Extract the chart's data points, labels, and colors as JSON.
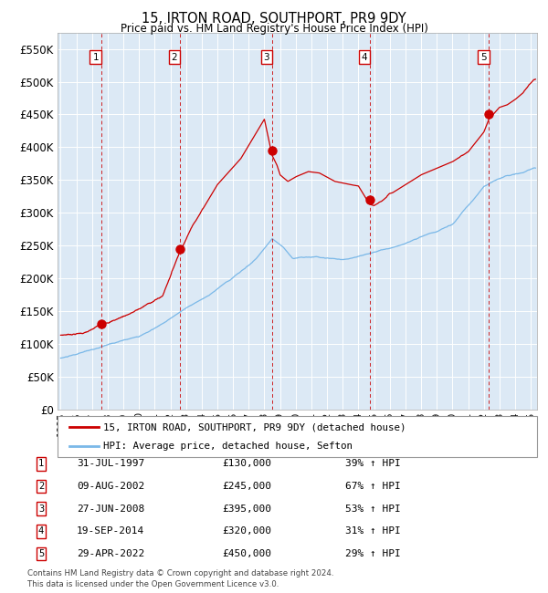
{
  "title": "15, IRTON ROAD, SOUTHPORT, PR9 9DY",
  "subtitle": "Price paid vs. HM Land Registry's House Price Index (HPI)",
  "background_color": "#dce9f5",
  "grid_color": "#ffffff",
  "ylim": [
    0,
    575000
  ],
  "yticks": [
    0,
    50000,
    100000,
    150000,
    200000,
    250000,
    300000,
    350000,
    400000,
    450000,
    500000,
    550000
  ],
  "ytick_labels": [
    "£0",
    "£50K",
    "£100K",
    "£150K",
    "£200K",
    "£250K",
    "£300K",
    "£350K",
    "£400K",
    "£450K",
    "£500K",
    "£550K"
  ],
  "sale_dates_num": [
    1997.58,
    2002.6,
    2008.49,
    2014.72,
    2022.33
  ],
  "sale_prices": [
    130000,
    245000,
    395000,
    320000,
    450000
  ],
  "sale_labels": [
    "1",
    "2",
    "3",
    "4",
    "5"
  ],
  "hpi_line_color": "#7ab8e8",
  "price_line_color": "#cc0000",
  "sale_dot_color": "#cc0000",
  "dashed_line_color": "#cc0000",
  "legend_box_label1": "15, IRTON ROAD, SOUTHPORT, PR9 9DY (detached house)",
  "legend_box_label2": "HPI: Average price, detached house, Sefton",
  "table_rows": [
    [
      "1",
      "31-JUL-1997",
      "£130,000",
      "39% ↑ HPI"
    ],
    [
      "2",
      "09-AUG-2002",
      "£245,000",
      "67% ↑ HPI"
    ],
    [
      "3",
      "27-JUN-2008",
      "£395,000",
      "53% ↑ HPI"
    ],
    [
      "4",
      "19-SEP-2014",
      "£320,000",
      "31% ↑ HPI"
    ],
    [
      "5",
      "29-APR-2022",
      "£450,000",
      "29% ↑ HPI"
    ]
  ],
  "footer_text": "Contains HM Land Registry data © Crown copyright and database right 2024.\nThis data is licensed under the Open Government Licence v3.0.",
  "xlim_start": 1994.8,
  "xlim_end": 2025.4,
  "hpi_anchors_t": [
    1995.0,
    1996.0,
    1997.0,
    1998.5,
    2000.0,
    2001.5,
    2003.0,
    2004.5,
    2006.0,
    2007.5,
    2008.5,
    2009.2,
    2009.8,
    2010.5,
    2011.5,
    2013.0,
    2014.0,
    2015.0,
    2016.0,
    2017.0,
    2018.0,
    2019.0,
    2020.0,
    2021.0,
    2022.0,
    2022.8,
    2023.5,
    2024.5,
    2025.2
  ],
  "hpi_anchors_v": [
    78000,
    83000,
    90000,
    100000,
    110000,
    128000,
    152000,
    172000,
    200000,
    228000,
    258000,
    245000,
    228000,
    230000,
    232000,
    230000,
    235000,
    242000,
    248000,
    255000,
    265000,
    272000,
    282000,
    310000,
    340000,
    352000,
    358000,
    362000,
    368000
  ],
  "price_anchors_t": [
    1995.0,
    1996.5,
    1997.0,
    1997.58,
    1998.5,
    2000.0,
    2001.5,
    2002.6,
    2003.5,
    2005.0,
    2006.5,
    2007.5,
    2008.0,
    2008.49,
    2008.8,
    2009.0,
    2009.5,
    2010.0,
    2010.8,
    2011.5,
    2012.5,
    2013.5,
    2014.0,
    2014.72,
    2015.0,
    2015.5,
    2016.0,
    2017.0,
    2018.0,
    2019.0,
    2020.0,
    2021.0,
    2021.5,
    2022.0,
    2022.33,
    2022.7,
    2023.0,
    2023.5,
    2024.0,
    2024.5,
    2025.0,
    2025.2
  ],
  "price_anchors_v": [
    113000,
    118000,
    122000,
    130000,
    138000,
    155000,
    175000,
    245000,
    290000,
    350000,
    390000,
    430000,
    450000,
    395000,
    380000,
    365000,
    355000,
    362000,
    370000,
    368000,
    355000,
    350000,
    348000,
    320000,
    318000,
    325000,
    335000,
    350000,
    365000,
    375000,
    385000,
    400000,
    415000,
    430000,
    450000,
    460000,
    468000,
    472000,
    480000,
    490000,
    505000,
    510000
  ]
}
